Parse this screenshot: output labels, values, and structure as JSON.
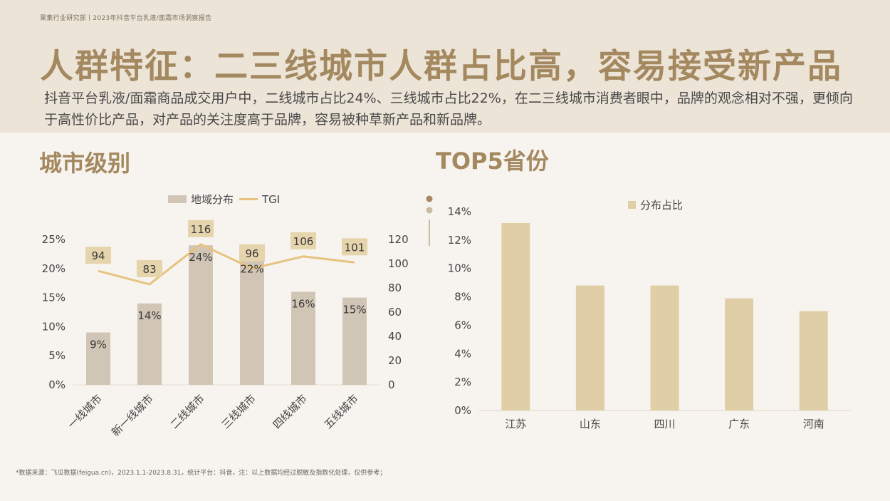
{
  "header": {
    "breadcrumb": "果集行业研究部丨2023年抖音平台乳液/面霜市场洞察报告",
    "title": "人群特征：二三线城市人群占比高，容易接受新产品",
    "subtitle": "抖音平台乳液/面霜商品成交用户中，二线城市占比24%、三线城市占比22%，在二三线城市消费者眼中，品牌的观念相对不强，更倾向于高性价比产品，对产品的关注度高于品牌，容易被种草新产品和新品牌。"
  },
  "left_section": {
    "title": "城市级别"
  },
  "right_section": {
    "title": "TOP5省份"
  },
  "footnote": "*数据来源：飞瓜数据(feigua.cn)，2023.1.1-2023.8.31，统计平台：抖音，注：以上数据均经过脱敏及指数化处理，仅供参考；",
  "colors": {
    "bar_left": "#d1c5b5",
    "tgi_line": "#e8c27f",
    "tgi_label_bg": "#e6d4ad",
    "bar_right": "#e0cfa6",
    "title": "#a4885f"
  },
  "chart_data": [
    {
      "type": "bar",
      "categories": [
        "一线城市",
        "新一线城市",
        "二线城市",
        "三线城市",
        "四线城市",
        "五线城市"
      ],
      "series": [
        {
          "name": "地域分布",
          "type": "bar",
          "axis": "left",
          "values": [
            9,
            14,
            24,
            22,
            16,
            15
          ],
          "labels": [
            "9%",
            "14%",
            "24%",
            "22%",
            "16%",
            "15%"
          ]
        },
        {
          "name": "TGI",
          "type": "line",
          "axis": "right",
          "values": [
            94,
            83,
            116,
            96,
            106,
            101
          ],
          "labels": [
            "94",
            "83",
            "116",
            "96",
            "106",
            "101"
          ]
        }
      ],
      "y_left": {
        "ticks": [
          "0%",
          "5%",
          "10%",
          "15%",
          "20%",
          "25%"
        ],
        "range": [
          0,
          25
        ]
      },
      "y_right": {
        "ticks": [
          "0",
          "20",
          "40",
          "60",
          "80",
          "100",
          "120"
        ],
        "range": [
          0,
          120
        ]
      },
      "legend": "top-center",
      "grid": false
    },
    {
      "type": "bar",
      "categories": [
        "江苏",
        "山东",
        "四川",
        "广东",
        "河南"
      ],
      "series": [
        {
          "name": "分布占比",
          "values": [
            13.2,
            8.8,
            8.8,
            7.9,
            7.0
          ]
        }
      ],
      "y": {
        "ticks": [
          "0%",
          "2%",
          "4%",
          "6%",
          "8%",
          "10%",
          "12%",
          "14%"
        ],
        "range": [
          0,
          14
        ]
      },
      "legend": "top-center",
      "grid": false
    }
  ]
}
